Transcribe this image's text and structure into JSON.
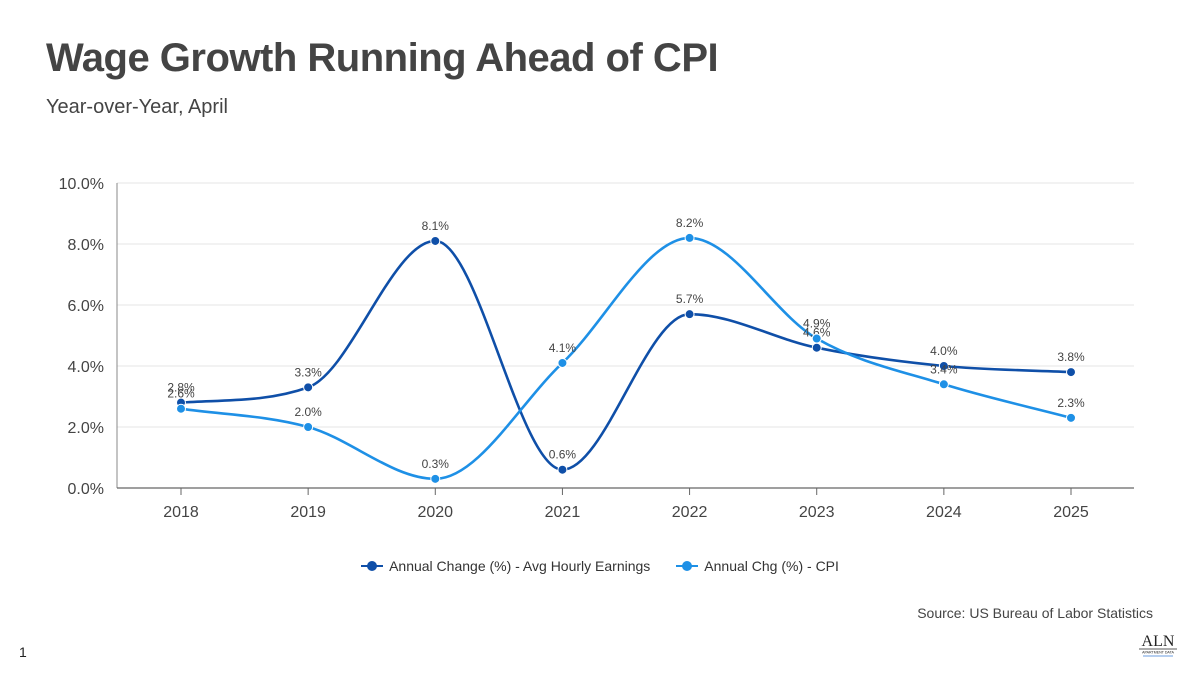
{
  "header": {
    "title": "Wage Growth Running Ahead of CPI",
    "subtitle": "Year-over-Year, April"
  },
  "footer": {
    "source": "Source: US Bureau of Labor Statistics",
    "page_number": "1",
    "logo_text": "ALN",
    "logo_subtext": "APARTMENT DATA"
  },
  "chart_data": {
    "type": "line",
    "categories": [
      "2018",
      "2019",
      "2020",
      "2021",
      "2022",
      "2023",
      "2024",
      "2025"
    ],
    "ylim": [
      0,
      10
    ],
    "yticks": [
      0,
      2,
      4,
      6,
      8,
      10
    ],
    "ytick_labels": [
      "0.0%",
      "2.0%",
      "4.0%",
      "6.0%",
      "8.0%",
      "10.0%"
    ],
    "grid": true,
    "legend_position": "bottom-center",
    "series": [
      {
        "name": "Annual Change (%) - Avg Hourly Earnings",
        "color": "#0f4fa8",
        "values": [
          2.8,
          3.3,
          8.1,
          0.6,
          5.7,
          4.6,
          4.0,
          3.8
        ],
        "labels": [
          "2.8%",
          "3.3%",
          "8.1%",
          "0.6%",
          "5.7%",
          "4.6%",
          "4.0%",
          "3.8%"
        ]
      },
      {
        "name": "Annual Chg (%) - CPI",
        "color": "#1e90e6",
        "values": [
          2.6,
          2.0,
          0.3,
          4.1,
          8.2,
          4.9,
          3.4,
          2.3
        ],
        "labels": [
          "2.6%",
          "2.0%",
          "0.3%",
          "4.1%",
          "8.2%",
          "4.9%",
          "3.4%",
          "2.3%"
        ]
      }
    ]
  }
}
